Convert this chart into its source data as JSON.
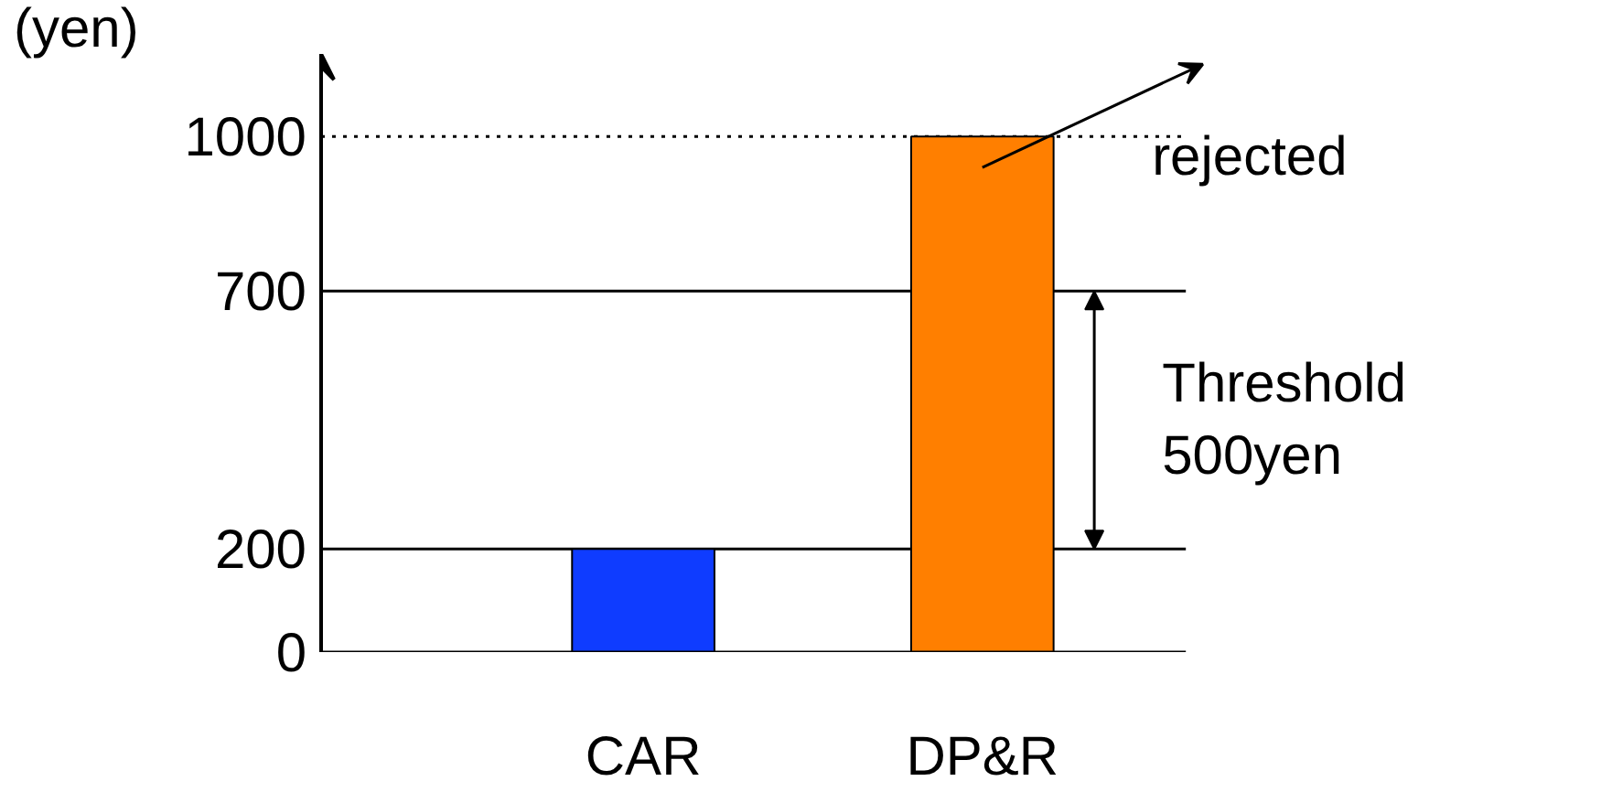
{
  "chart_data": {
    "type": "bar",
    "ylabel": "(yen)",
    "categories": [
      "CAR",
      "DP&R"
    ],
    "values": [
      200,
      1000
    ],
    "colors": [
      "#0f3cff",
      "#ff7f00"
    ],
    "ylim": [
      0,
      1160
    ],
    "yticks": [
      0,
      200,
      700,
      1000
    ],
    "grid": false,
    "ref_lines": [
      {
        "axis": "y",
        "value": 1000,
        "line_style": "dotted"
      },
      {
        "axis": "y",
        "value": 700,
        "line_style": "solid"
      },
      {
        "axis": "y",
        "value": 200,
        "line_style": "solid"
      }
    ],
    "annotations": [
      "rejected",
      "Threshold 500yen"
    ]
  }
}
